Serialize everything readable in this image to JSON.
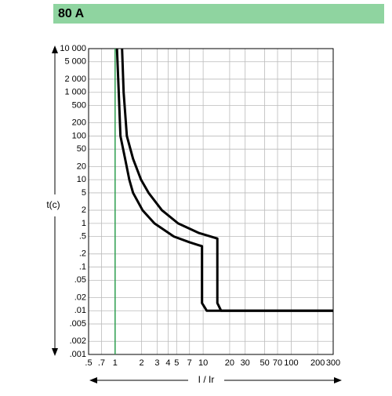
{
  "chart_data": {
    "type": "line",
    "title": "80 A",
    "xlabel": "I / Ir",
    "ylabel": "t(c)",
    "xscale": "log",
    "yscale": "log",
    "grid": true,
    "xlim": [
      0.5,
      300
    ],
    "ylim": [
      0.001,
      10000
    ],
    "xticks": [
      {
        "value": 0.5,
        "label": ".5"
      },
      {
        "value": 0.7,
        "label": ".7"
      },
      1,
      2,
      3,
      4,
      5,
      7,
      10,
      20,
      30,
      50,
      70,
      100,
      200,
      300
    ],
    "yticks": [
      {
        "value": 10000,
        "label": "10 000"
      },
      {
        "value": 5000,
        "label": "5 000"
      },
      {
        "value": 2000,
        "label": "2 000"
      },
      {
        "value": 1000,
        "label": "1 000"
      },
      500,
      200,
      100,
      50,
      20,
      10,
      5,
      2,
      1,
      {
        "value": 0.5,
        "label": ".5"
      },
      {
        "value": 0.2,
        "label": ".2"
      },
      {
        "value": 0.1,
        "label": ".1"
      },
      {
        "value": 0.05,
        "label": ".05"
      },
      {
        "value": 0.02,
        "label": ".02"
      },
      {
        "value": 0.01,
        "label": ".01"
      },
      {
        "value": 0.005,
        "label": ".005"
      },
      {
        "value": 0.002,
        "label": ".002"
      },
      {
        "value": 0.001,
        "label": ".001"
      }
    ],
    "vlines": [
      {
        "x": 1,
        "color": "#2e9e4f"
      }
    ],
    "series": [
      {
        "color": "#000000",
        "x": [
          1.05,
          1.1,
          1.15,
          1.3,
          1.45,
          1.6,
          2.05,
          2.8,
          4.65,
          7,
          9.7,
          9.7,
          11,
          300
        ],
        "values": [
          10000,
          1000,
          100,
          30,
          10,
          5,
          2,
          1,
          0.5,
          0.37,
          0.3,
          0.015,
          0.01,
          0.01
        ]
      },
      {
        "color": "#000000",
        "x": [
          1.2,
          1.25,
          1.36,
          1.6,
          1.97,
          2.4,
          3.4,
          5.2,
          9,
          14.5,
          14.5,
          16,
          300
        ],
        "values": [
          10000,
          1000,
          100,
          30,
          10,
          5,
          2,
          1,
          0.6,
          0.45,
          0.015,
          0.01,
          0.01
        ]
      }
    ]
  }
}
